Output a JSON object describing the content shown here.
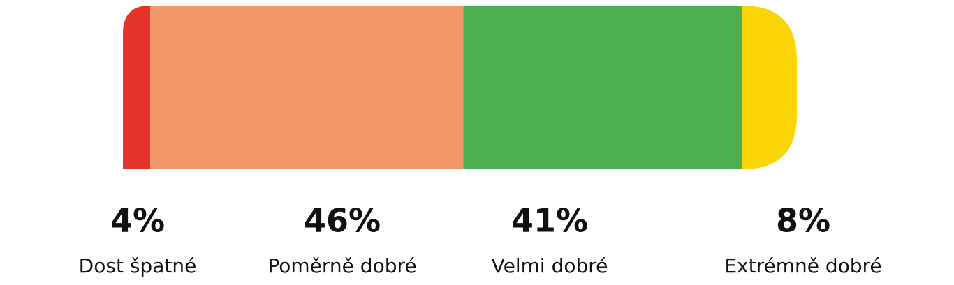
{
  "chart_data": {
    "type": "stacked-bar",
    "categories": [
      "Dost špatné",
      "Poměrně dobré",
      "Velmi dobré",
      "Extrémně dobré"
    ],
    "values": [
      4,
      46,
      41,
      8
    ],
    "value_labels": [
      "4%",
      "46%",
      "41%",
      "8%"
    ],
    "colors": [
      "#e63329",
      "#f19768",
      "#4caf50",
      "#fbd505"
    ]
  }
}
